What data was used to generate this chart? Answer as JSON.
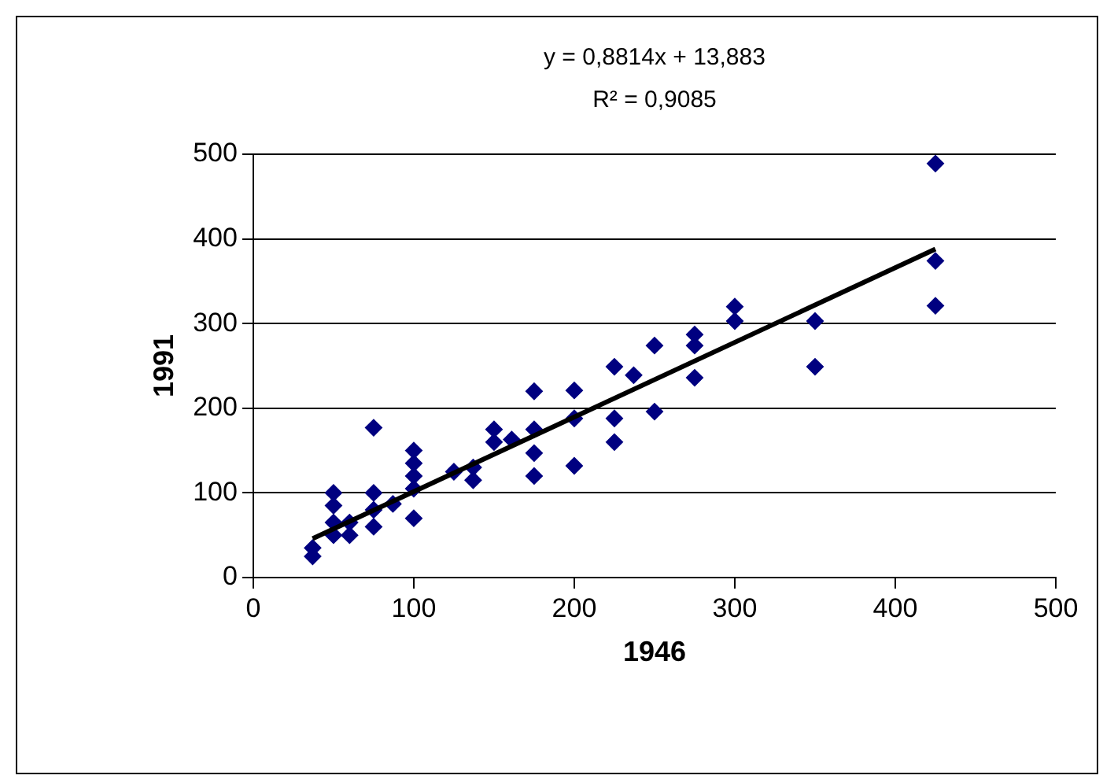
{
  "chart_data": {
    "type": "scatter",
    "xlabel": "1946",
    "ylabel": "1991",
    "annotations": [
      "y = 0,8814x + 13,883",
      "R² = 0,9085"
    ],
    "series": [
      {
        "type": "scatter",
        "color": "#000080",
        "marker": "diamond",
        "x": [
          37,
          37,
          50,
          50,
          50,
          50,
          60,
          60,
          75,
          75,
          75,
          75,
          87,
          100,
          100,
          100,
          100,
          100,
          125,
          137,
          137,
          150,
          150,
          161,
          175,
          175,
          175,
          175,
          200,
          200,
          200,
          225,
          225,
          225,
          237,
          250,
          250,
          275,
          275,
          275,
          300,
          300,
          350,
          350,
          425,
          425,
          425
        ],
        "values": [
          35,
          25,
          100,
          85,
          65,
          50,
          65,
          50,
          177,
          100,
          80,
          60,
          87,
          150,
          135,
          120,
          105,
          70,
          125,
          130,
          115,
          175,
          160,
          163,
          220,
          175,
          147,
          120,
          221,
          188,
          132,
          249,
          188,
          160,
          239,
          274,
          196,
          287,
          274,
          236,
          320,
          303,
          303,
          249,
          489,
          374,
          321
        ]
      },
      {
        "type": "line",
        "color": "#000000",
        "marker": "none",
        "x": [
          37,
          425
        ],
        "values": [
          46,
          388
        ]
      }
    ],
    "xlim": [
      0,
      500
    ],
    "xticks": [
      0,
      100,
      200,
      300,
      400,
      500
    ],
    "ylim": [
      0,
      500
    ],
    "yticks": [
      0,
      100,
      200,
      300,
      400,
      500
    ],
    "grid": "y",
    "legend": false
  }
}
